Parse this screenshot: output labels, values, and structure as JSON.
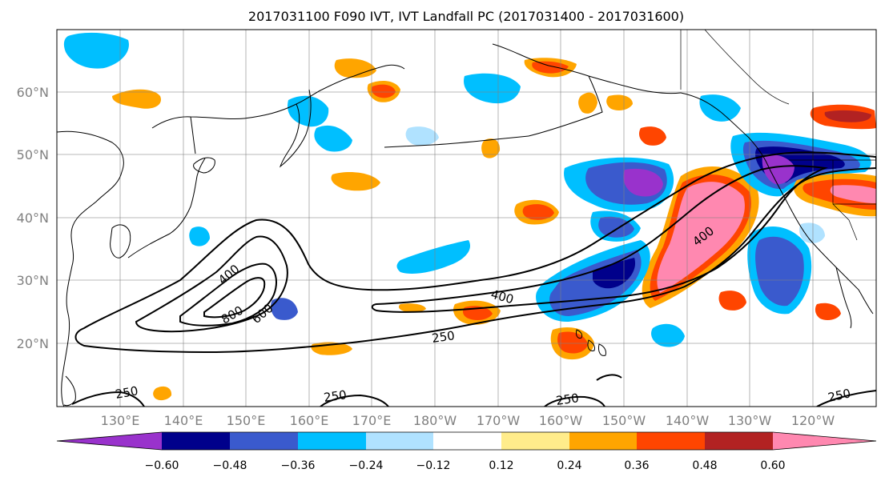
{
  "title": "2017031100 F090 IVT, IVT Landfall PC (2017031400 - 2017031600)",
  "map": {
    "lat_labels": [
      "60°N",
      "50°N",
      "40°N",
      "30°N",
      "20°N"
    ],
    "lon_labels": [
      "130°E",
      "140°E",
      "150°E",
      "160°E",
      "170°E",
      "180°W",
      "170°W",
      "160°W",
      "150°W",
      "140°W",
      "130°W",
      "120°W"
    ],
    "contour_labels": [
      "400",
      "800",
      "600",
      "400",
      "250",
      "400",
      "250",
      "250",
      "250",
      "250"
    ],
    "extent": {
      "lon_min": 120,
      "lon_max": 250,
      "lat_min": 10,
      "lat_max": 70
    }
  },
  "colorbar": {
    "colors": [
      "#9932cc",
      "#00008b",
      "#3a5acd",
      "#00bfff",
      "#b0e2ff",
      "#ffffff",
      "#ffec8b",
      "#ffa500",
      "#ff4500",
      "#b22222",
      "#ff88b0"
    ],
    "tick_labels": [
      "−0.60",
      "−0.48",
      "−0.36",
      "−0.24",
      "−0.12",
      "0.12",
      "0.24",
      "0.36",
      "0.48",
      "0.60"
    ]
  }
}
